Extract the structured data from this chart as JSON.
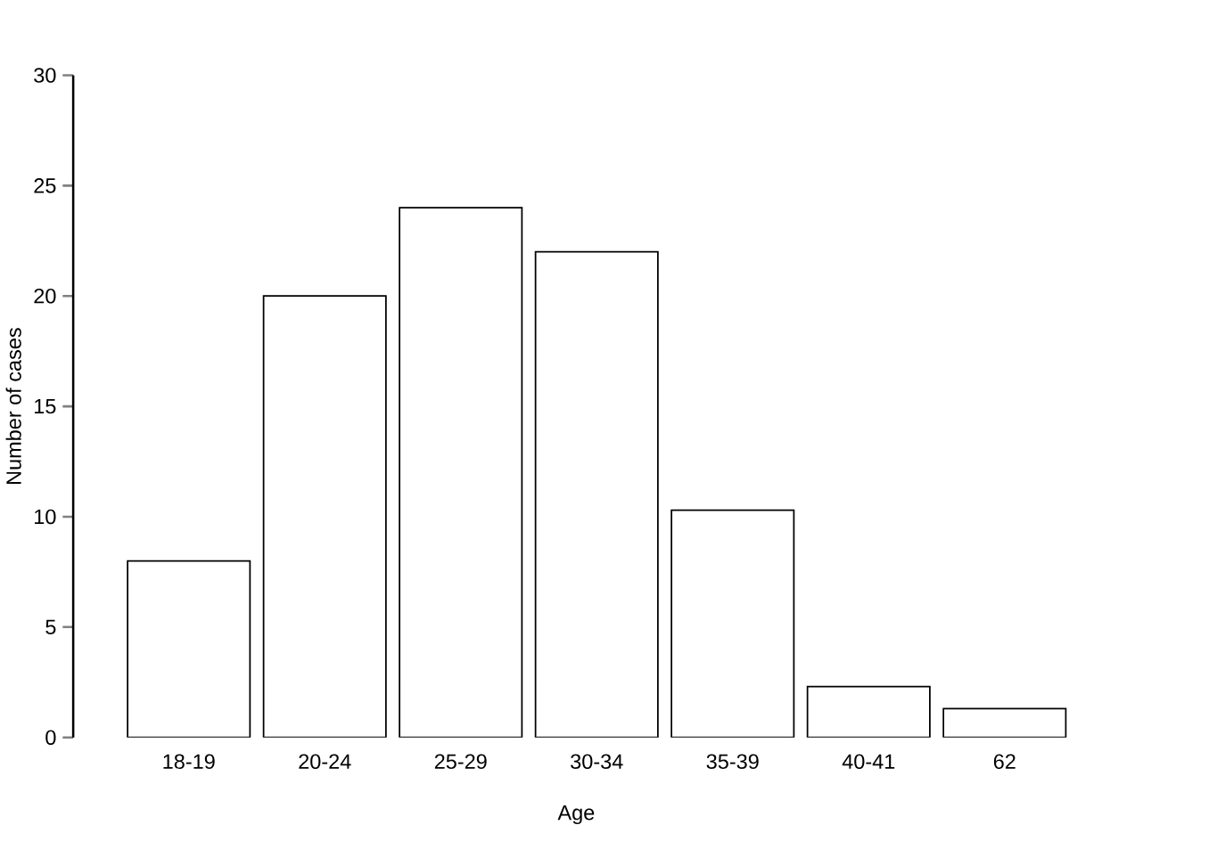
{
  "chart_data": {
    "type": "bar",
    "xlabel": "Age",
    "ylabel": "Number of cases",
    "categories": [
      "18-19",
      "20-24",
      "25-29",
      "30-34",
      "35-39",
      "40-41",
      "62"
    ],
    "values": [
      8,
      20,
      24,
      22,
      10.3,
      2.3,
      1.3
    ],
    "color": "#ffffff",
    "ylim": [
      0,
      30
    ],
    "yticks": [
      0,
      5,
      10,
      15,
      20,
      25,
      30
    ]
  }
}
